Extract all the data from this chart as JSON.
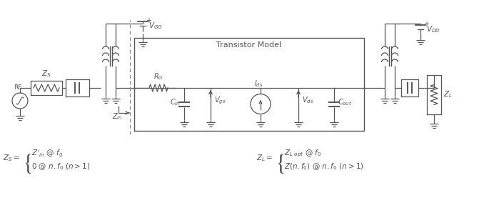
{
  "bg_color": "#ffffff",
  "line_color": "#555555",
  "title": "Transistor Model",
  "fig_width": 6.78,
  "fig_height": 2.91,
  "dpi": 100
}
